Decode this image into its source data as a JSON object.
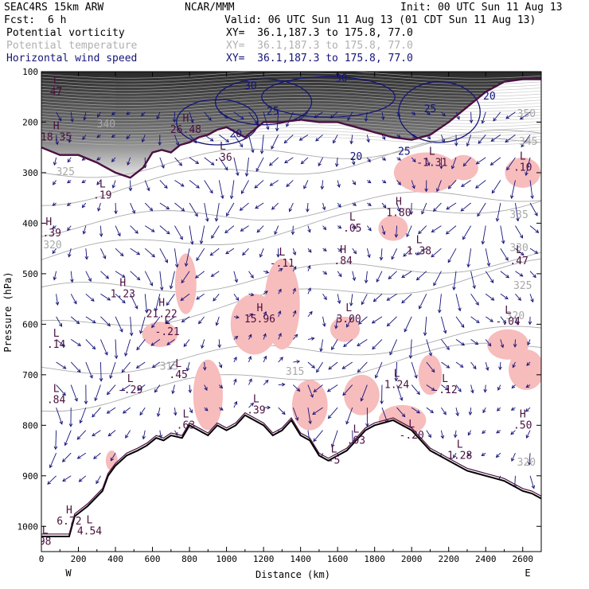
{
  "header": {
    "left1": "SEAC4RS 15km ARW",
    "left2_label": "Fcst:",
    "left2_value": "6 h",
    "center": "NCAR/MMM",
    "init": "Init: 00 UTC Sun 11 Aug 13",
    "valid": "Valid: 06 UTC Sun 11 Aug 13 (01 CDT Sun 11 Aug 13)"
  },
  "fields": [
    {
      "name": "Potential vorticity",
      "xy": "XY=  36.1,187.3 to 175.8, 77.0",
      "color": "#000000"
    },
    {
      "name": "Potential temperature",
      "xy": "XY=  36.1,187.3 to 175.8, 77.0",
      "color": "#b0b0b0"
    },
    {
      "name": "Horizontal wind speed",
      "xy": "XY=  36.1,187.3 to 175.8, 77.0",
      "color": "#14147a"
    }
  ],
  "chart_data": {
    "type": "cross-section",
    "xlabel": "Distance (km)",
    "ylabel": "Pressure (hPa)",
    "xlim": [
      0,
      2700
    ],
    "ylim": [
      1050,
      100
    ],
    "x_ticks": [
      0,
      200,
      400,
      600,
      800,
      1000,
      1200,
      1400,
      1600,
      1800,
      2000,
      2200,
      2400,
      2600
    ],
    "y_ticks": [
      100,
      200,
      300,
      400,
      500,
      600,
      700,
      800,
      900,
      1000
    ],
    "x_end_labels": {
      "left": "W",
      "right": "E"
    },
    "terrain": [
      [
        0,
        1020
      ],
      [
        150,
        1020
      ],
      [
        180,
        980
      ],
      [
        250,
        960
      ],
      [
        330,
        930
      ],
      [
        360,
        900
      ],
      [
        400,
        880
      ],
      [
        460,
        860
      ],
      [
        520,
        850
      ],
      [
        570,
        840
      ],
      [
        620,
        825
      ],
      [
        660,
        830
      ],
      [
        700,
        820
      ],
      [
        760,
        825
      ],
      [
        800,
        800
      ],
      [
        850,
        810
      ],
      [
        900,
        820
      ],
      [
        950,
        800
      ],
      [
        1000,
        810
      ],
      [
        1050,
        800
      ],
      [
        1100,
        780
      ],
      [
        1150,
        790
      ],
      [
        1200,
        800
      ],
      [
        1250,
        820
      ],
      [
        1300,
        810
      ],
      [
        1350,
        790
      ],
      [
        1400,
        820
      ],
      [
        1450,
        830
      ],
      [
        1500,
        860
      ],
      [
        1550,
        870
      ],
      [
        1600,
        860
      ],
      [
        1650,
        850
      ],
      [
        1700,
        830
      ],
      [
        1750,
        810
      ],
      [
        1800,
        800
      ],
      [
        1850,
        795
      ],
      [
        1900,
        790
      ],
      [
        1950,
        800
      ],
      [
        2000,
        810
      ],
      [
        2050,
        830
      ],
      [
        2100,
        850
      ],
      [
        2150,
        860
      ],
      [
        2200,
        870
      ],
      [
        2250,
        880
      ],
      [
        2300,
        890
      ],
      [
        2350,
        895
      ],
      [
        2400,
        900
      ],
      [
        2450,
        905
      ],
      [
        2500,
        910
      ],
      [
        2550,
        920
      ],
      [
        2600,
        930
      ],
      [
        2650,
        935
      ],
      [
        2700,
        945
      ]
    ],
    "pv_2pvu_line": [
      [
        0,
        250
      ],
      [
        100,
        265
      ],
      [
        200,
        265
      ],
      [
        300,
        280
      ],
      [
        400,
        300
      ],
      [
        480,
        310
      ],
      [
        550,
        290
      ],
      [
        600,
        260
      ],
      [
        650,
        255
      ],
      [
        700,
        260
      ],
      [
        750,
        245
      ],
      [
        800,
        240
      ],
      [
        850,
        230
      ],
      [
        900,
        225
      ],
      [
        950,
        215
      ],
      [
        1000,
        210
      ],
      [
        1050,
        220
      ],
      [
        1100,
        230
      ],
      [
        1150,
        215
      ],
      [
        1200,
        200
      ],
      [
        1300,
        200
      ],
      [
        1400,
        195
      ],
      [
        1500,
        200
      ],
      [
        1600,
        200
      ],
      [
        1700,
        210
      ],
      [
        1800,
        220
      ],
      [
        1900,
        230
      ],
      [
        2000,
        235
      ],
      [
        2100,
        225
      ],
      [
        2200,
        200
      ],
      [
        2300,
        170
      ],
      [
        2400,
        140
      ],
      [
        2500,
        120
      ],
      [
        2600,
        115
      ],
      [
        2700,
        115
      ]
    ],
    "wind_contour_labels": [
      {
        "x": 1130,
        "p": 135,
        "value": "30"
      },
      {
        "x": 1620,
        "p": 120,
        "value": "30"
      },
      {
        "x": 1250,
        "p": 185,
        "value": "25"
      },
      {
        "x": 2100,
        "p": 180,
        "value": "25"
      },
      {
        "x": 2420,
        "p": 155,
        "value": "20"
      },
      {
        "x": 1050,
        "p": 230,
        "value": "20"
      },
      {
        "x": 1700,
        "p": 275,
        "value": "20"
      },
      {
        "x": 1960,
        "p": 265,
        "value": "25"
      }
    ],
    "theta_labels": [
      {
        "x": 350,
        "p": 210,
        "value": "340"
      },
      {
        "x": 2620,
        "p": 190,
        "value": "350"
      },
      {
        "x": 2630,
        "p": 245,
        "value": "345"
      },
      {
        "x": 130,
        "p": 305,
        "value": "325"
      },
      {
        "x": 2580,
        "p": 390,
        "value": "335"
      },
      {
        "x": 2580,
        "p": 455,
        "value": "330"
      },
      {
        "x": 60,
        "p": 450,
        "value": "320"
      },
      {
        "x": 2600,
        "p": 530,
        "value": "325"
      },
      {
        "x": 2560,
        "p": 590,
        "value": "320"
      },
      {
        "x": 1370,
        "p": 700,
        "value": "315"
      },
      {
        "x": 690,
        "p": 690,
        "value": "315"
      },
      {
        "x": 2620,
        "p": 880,
        "value": "320"
      }
    ],
    "hl_markers": [
      {
        "x": 80,
        "p": 140,
        "type": "L",
        "value": "47"
      },
      {
        "x": 80,
        "p": 230,
        "type": "H",
        "value": "18.35"
      },
      {
        "x": 330,
        "p": 345,
        "type": "L",
        "value": ".19"
      },
      {
        "x": 40,
        "p": 420,
        "type": "H",
        "value": "1.39"
      },
      {
        "x": 440,
        "p": 540,
        "type": "H",
        "value": "1.23"
      },
      {
        "x": 650,
        "p": 580,
        "type": "H",
        "value": "21.22"
      },
      {
        "x": 680,
        "p": 615,
        "type": "L",
        "value": "-.21"
      },
      {
        "x": 780,
        "p": 215,
        "type": "H",
        "value": "26.48"
      },
      {
        "x": 980,
        "p": 270,
        "type": "L",
        "value": ".36"
      },
      {
        "x": 1180,
        "p": 590,
        "type": "H",
        "value": "15.96"
      },
      {
        "x": 1300,
        "p": 480,
        "type": "L",
        "value": "-.11"
      },
      {
        "x": 1630,
        "p": 475,
        "type": "H",
        "value": ".84"
      },
      {
        "x": 1680,
        "p": 410,
        "type": "L",
        "value": ".05"
      },
      {
        "x": 1930,
        "p": 380,
        "type": "H",
        "value": "1.80"
      },
      {
        "x": 2040,
        "p": 455,
        "type": "L",
        "value": "1.38"
      },
      {
        "x": 2110,
        "p": 280,
        "type": "L",
        "value": "-1.31"
      },
      {
        "x": 1660,
        "p": 590,
        "type": "L",
        "value": "3.00"
      },
      {
        "x": 1920,
        "p": 720,
        "type": "L",
        "value": "1.24"
      },
      {
        "x": 2180,
        "p": 730,
        "type": "L",
        "value": "-.12"
      },
      {
        "x": 2520,
        "p": 595,
        "type": "L",
        "value": "-.04"
      },
      {
        "x": 2580,
        "p": 475,
        "type": "L",
        "value": ".47"
      },
      {
        "x": 2600,
        "p": 290,
        "type": "L",
        "value": ".10"
      },
      {
        "x": 80,
        "p": 640,
        "type": "L",
        "value": ".14"
      },
      {
        "x": 80,
        "p": 750,
        "type": "L",
        "value": ".84"
      },
      {
        "x": 480,
        "p": 730,
        "type": "L",
        "value": "-.29"
      },
      {
        "x": 740,
        "p": 700,
        "type": "L",
        "value": ".45"
      },
      {
        "x": 780,
        "p": 800,
        "type": "L",
        "value": ".63"
      },
      {
        "x": 1160,
        "p": 770,
        "type": "L",
        "value": ".39"
      },
      {
        "x": 1700,
        "p": 830,
        "type": "L",
        "value": ".03"
      },
      {
        "x": 2000,
        "p": 820,
        "type": "L",
        "value": "-.20"
      },
      {
        "x": 2260,
        "p": 860,
        "type": "L",
        "value": "1.28"
      },
      {
        "x": 2600,
        "p": 800,
        "type": "H",
        "value": ".50"
      },
      {
        "x": 150,
        "p": 990,
        "type": "H",
        "value": "6.72"
      },
      {
        "x": 260,
        "p": 1010,
        "type": "L",
        "value": "4.54"
      },
      {
        "x": 20,
        "p": 1030,
        "type": "L",
        "value": "98"
      },
      {
        "x": 1580,
        "p": 870,
        "type": "L",
        "value": "-5"
      }
    ]
  }
}
